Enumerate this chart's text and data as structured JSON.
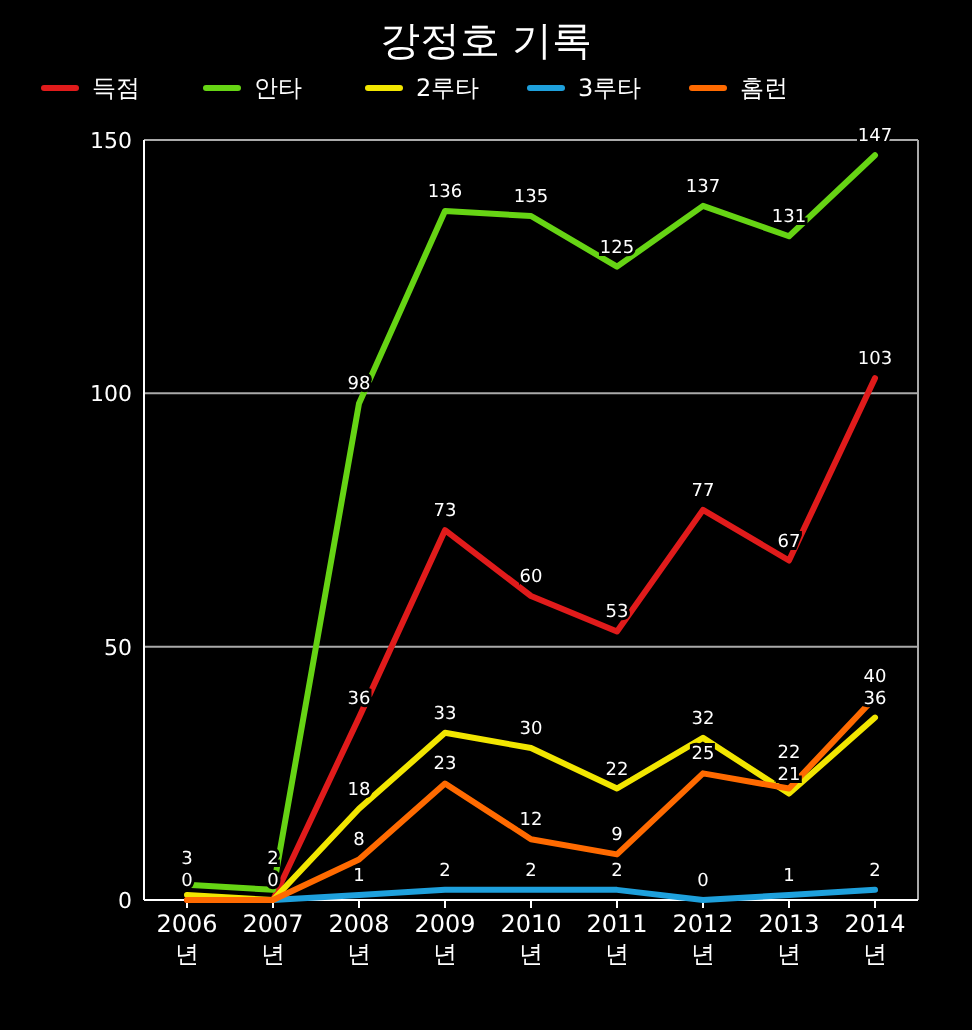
{
  "chart_data": {
    "type": "line",
    "title": "강정호 기록",
    "categories": [
      "2006 년",
      "2007 년",
      "2008 년",
      "2009 년",
      "2010 년",
      "2011 년",
      "2012 년",
      "2013 년",
      "2014 년"
    ],
    "series": [
      {
        "name": "득점",
        "color": "#e01b1b",
        "values": [
          0,
          0,
          36,
          73,
          60,
          53,
          77,
          67,
          103
        ],
        "value_labels": [
          "0",
          "0",
          "36",
          "73",
          "60",
          "53",
          "77",
          "67",
          "103"
        ]
      },
      {
        "name": "안타",
        "color": "#66d414",
        "values": [
          3,
          2,
          98,
          136,
          135,
          125,
          137,
          131,
          147
        ],
        "value_labels": [
          "3",
          "2",
          "98",
          "136",
          "135",
          "125",
          "137",
          "131",
          "147"
        ]
      },
      {
        "name": "2루타",
        "color": "#f2e600",
        "values": [
          1,
          0,
          18,
          33,
          30,
          22,
          32,
          21,
          36
        ],
        "value_labels": [
          null,
          null,
          "18",
          "33",
          "30",
          "22",
          "32",
          "21",
          "36"
        ]
      },
      {
        "name": "3루타",
        "color": "#1ea0dc",
        "values": [
          null,
          0,
          1,
          2,
          2,
          2,
          0,
          1,
          2
        ],
        "value_labels": [
          null,
          null,
          "1",
          "2",
          "2",
          "2",
          "0",
          "1",
          "2"
        ]
      },
      {
        "name": "홈런",
        "color": "#ff6a00",
        "values": [
          0,
          0,
          8,
          23,
          12,
          9,
          25,
          22,
          40
        ],
        "value_labels": [
          null,
          null,
          "8",
          "23",
          "12",
          "9",
          "25",
          "22",
          "40"
        ]
      }
    ],
    "ylim": [
      0,
      150
    ],
    "yticks": [
      0,
      50,
      100,
      150
    ],
    "grid": "y",
    "legend": "top",
    "marker": "none",
    "line_style": "solid"
  }
}
